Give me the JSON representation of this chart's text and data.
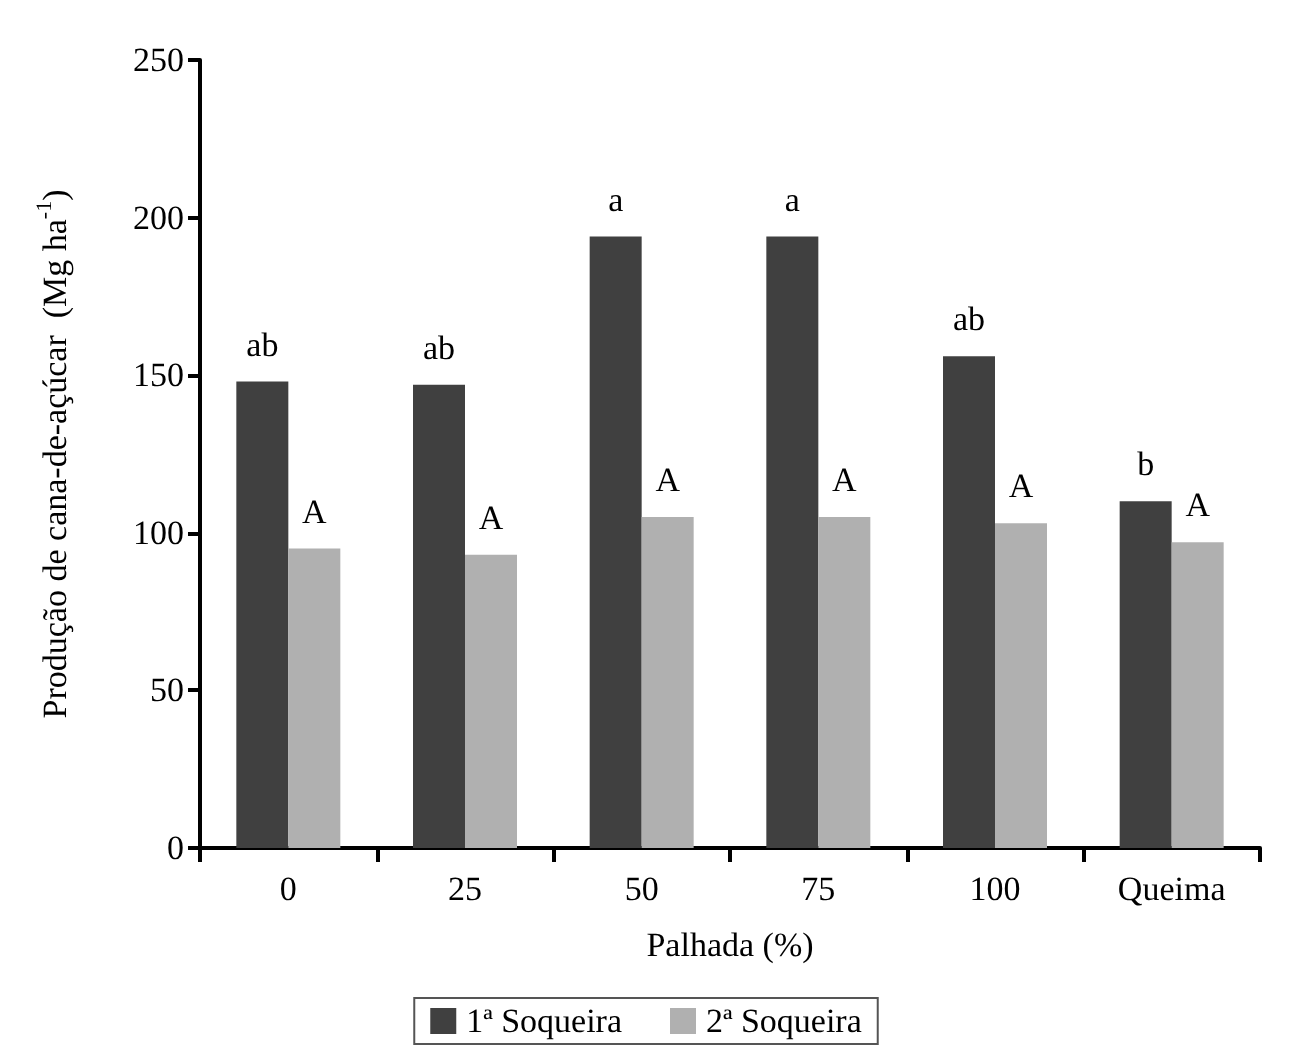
{
  "chart_data": {
    "type": "bar",
    "xlabel": "Palhada (%)",
    "ylabel": "Produção de cana-de-açúcar  (Mg ha$^{-1}$)",
    "categories": [
      "0",
      "25",
      "50",
      "75",
      "100",
      "Queima"
    ],
    "series": [
      {
        "name": "1ª Soqueira",
        "color": "#404040",
        "values": [
          148,
          147,
          194,
          194,
          156,
          110
        ]
      },
      {
        "name": "2ª Soqueira",
        "color": "#b0b0b0",
        "values": [
          95,
          93,
          105,
          105,
          103,
          97
        ]
      }
    ],
    "ylim": [
      0,
      250
    ],
    "yticks": [
      0,
      50,
      100,
      150,
      200,
      250
    ],
    "grid": false,
    "legend": "bottom",
    "annotations": [
      {
        "text": "ab",
        "x": "0",
        "y": 148
      },
      {
        "text": "A",
        "x": "0",
        "y": 95
      },
      {
        "text": "ab",
        "x": "25",
        "y": 147
      },
      {
        "text": "A",
        "x": "25",
        "y": 93
      },
      {
        "text": "a",
        "x": "50",
        "y": 194
      },
      {
        "text": "A",
        "x": "50",
        "y": 105
      },
      {
        "text": "a",
        "x": "75",
        "y": 194
      },
      {
        "text": "A",
        "x": "75",
        "y": 105
      },
      {
        "text": "ab",
        "x": "100",
        "y": 156
      },
      {
        "text": "A",
        "x": "100",
        "y": 103
      },
      {
        "text": "b",
        "x": "Queima",
        "y": 110
      },
      {
        "text": "A",
        "x": "Queima",
        "y": 97
      }
    ]
  }
}
